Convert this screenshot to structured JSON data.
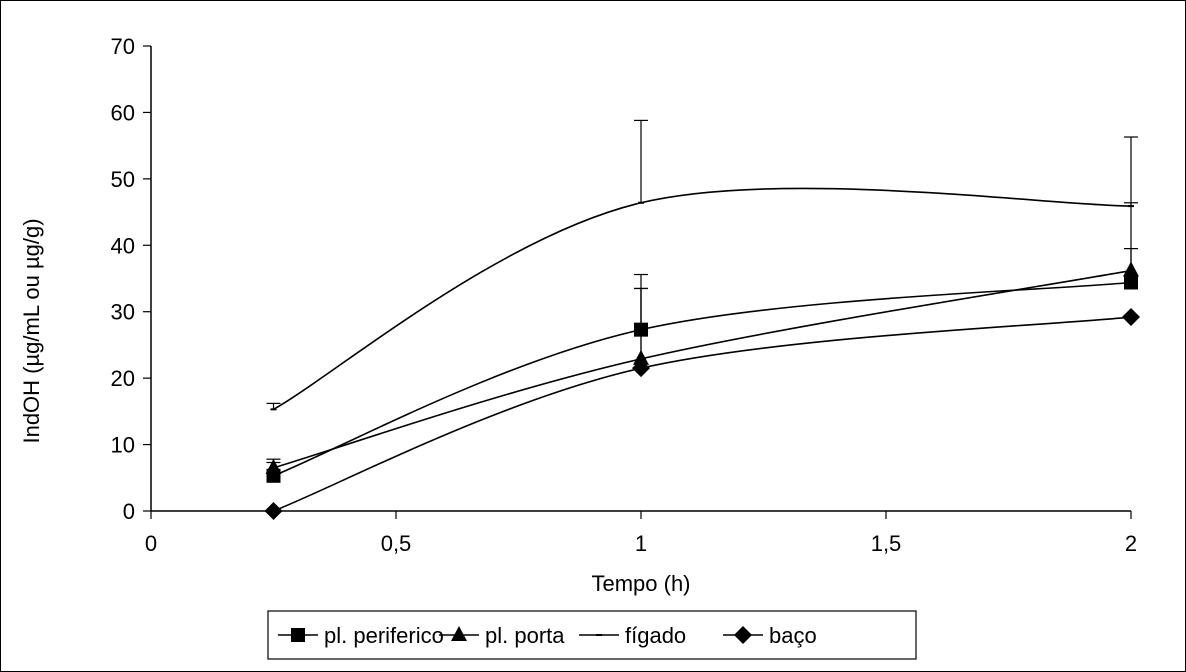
{
  "chart_data": {
    "type": "line",
    "title": "",
    "xlabel": "Tempo (h)",
    "ylabel": "IndOH (µg/mL ou µg/g)",
    "x_tick_labels": [
      "0",
      "0,5",
      "1",
      "1,5",
      "2"
    ],
    "y_tick_labels": [
      "0",
      "10",
      "20",
      "30",
      "40",
      "50",
      "60",
      "70"
    ],
    "xlim": [
      0,
      2
    ],
    "ylim": [
      0,
      70
    ],
    "grid": false,
    "legend_position": "bottom",
    "x": [
      0.25,
      1,
      2
    ],
    "series": [
      {
        "name": "pl. periferico",
        "marker": "square",
        "values": [
          5.3,
          27.3,
          34.4
        ],
        "error_plus": [
          2.0,
          8.3,
          5.1
        ]
      },
      {
        "name": "pl. porta",
        "marker": "triangle",
        "values": [
          6.5,
          22.9,
          36.2
        ],
        "error_plus": [
          1.3,
          10.6,
          10.2
        ]
      },
      {
        "name": "fígado",
        "marker": "dash",
        "values": [
          15.3,
          46.4,
          45.9
        ],
        "error_plus": [
          0.9,
          12.4,
          10.4
        ]
      },
      {
        "name": "baço",
        "marker": "diamond",
        "values": [
          0,
          21.5,
          29.2
        ],
        "error_plus": [
          0,
          12.0,
          0
        ]
      }
    ]
  }
}
